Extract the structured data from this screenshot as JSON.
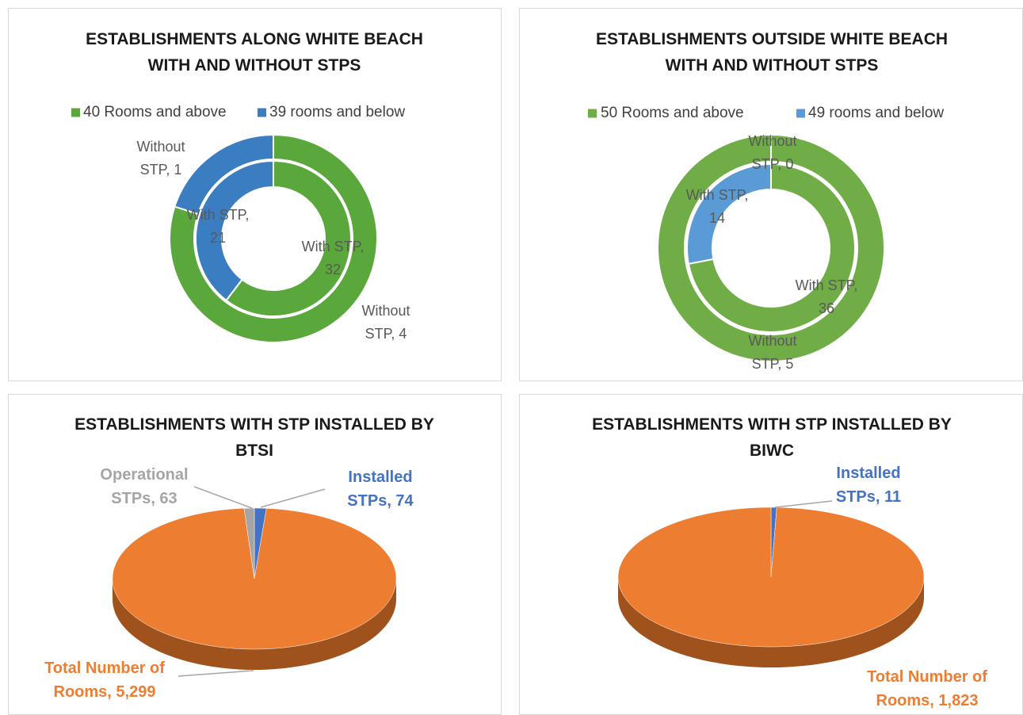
{
  "chart_data": [
    {
      "type": "doughnut",
      "title": "ESTABLISHMENTS ALONG WHITE BEACH WITH AND WITHOUT STPS",
      "categories": [
        "40 Rooms and above",
        "39 rooms and below"
      ],
      "colors": [
        "#5aa83c",
        "#3a7dc0"
      ],
      "legend": "top",
      "series": [
        {
          "name": "With STP",
          "values": [
            32,
            21
          ],
          "value_labels": [
            "With STP, 32",
            "With STP, 21"
          ]
        },
        {
          "name": "Without STP",
          "values": [
            4,
            1
          ],
          "value_labels": [
            "Without STP, 4",
            "Without STP, 1"
          ]
        }
      ]
    },
    {
      "type": "doughnut",
      "title": "ESTABLISHMENTS OUTSIDE WHITE BEACH WITH AND WITHOUT STPS",
      "categories": [
        "50 Rooms and above",
        "49 rooms and below"
      ],
      "colors": [
        "#70ad47",
        "#5b9bd5"
      ],
      "legend": "top",
      "series": [
        {
          "name": "With STP",
          "values": [
            36,
            14
          ],
          "value_labels": [
            "With STP, 36",
            "With STP, 14"
          ]
        },
        {
          "name": "Without STP",
          "values": [
            5,
            0
          ],
          "value_labels": [
            "Without STP, 5",
            "Without STP, 0"
          ]
        }
      ]
    },
    {
      "type": "pie3d",
      "title": "ESTABLISHMENTS WITH STP INSTALLED BY BTSI",
      "categories": [
        "Installed STPs",
        "Total Number of Rooms",
        "Operational STPs"
      ],
      "values": [
        74,
        5299,
        63
      ],
      "value_labels": [
        "Installed STPs, 74",
        "Total Number of Rooms, 5,299",
        "Operational STPs, 63"
      ],
      "colors": [
        "#4472c4",
        "#ed7d31",
        "#a5a5a5"
      ]
    },
    {
      "type": "pie3d",
      "title": "ESTABLISHMENTS WITH STP INSTALLED BY BIWC",
      "categories": [
        "Installed STPs",
        "Total Number of Rooms"
      ],
      "values": [
        11,
        1823
      ],
      "value_labels": [
        "Installed STPs, 11",
        "Total Number of Rooms, 1,823"
      ],
      "colors": [
        "#4472c4",
        "#ed7d31"
      ]
    }
  ]
}
